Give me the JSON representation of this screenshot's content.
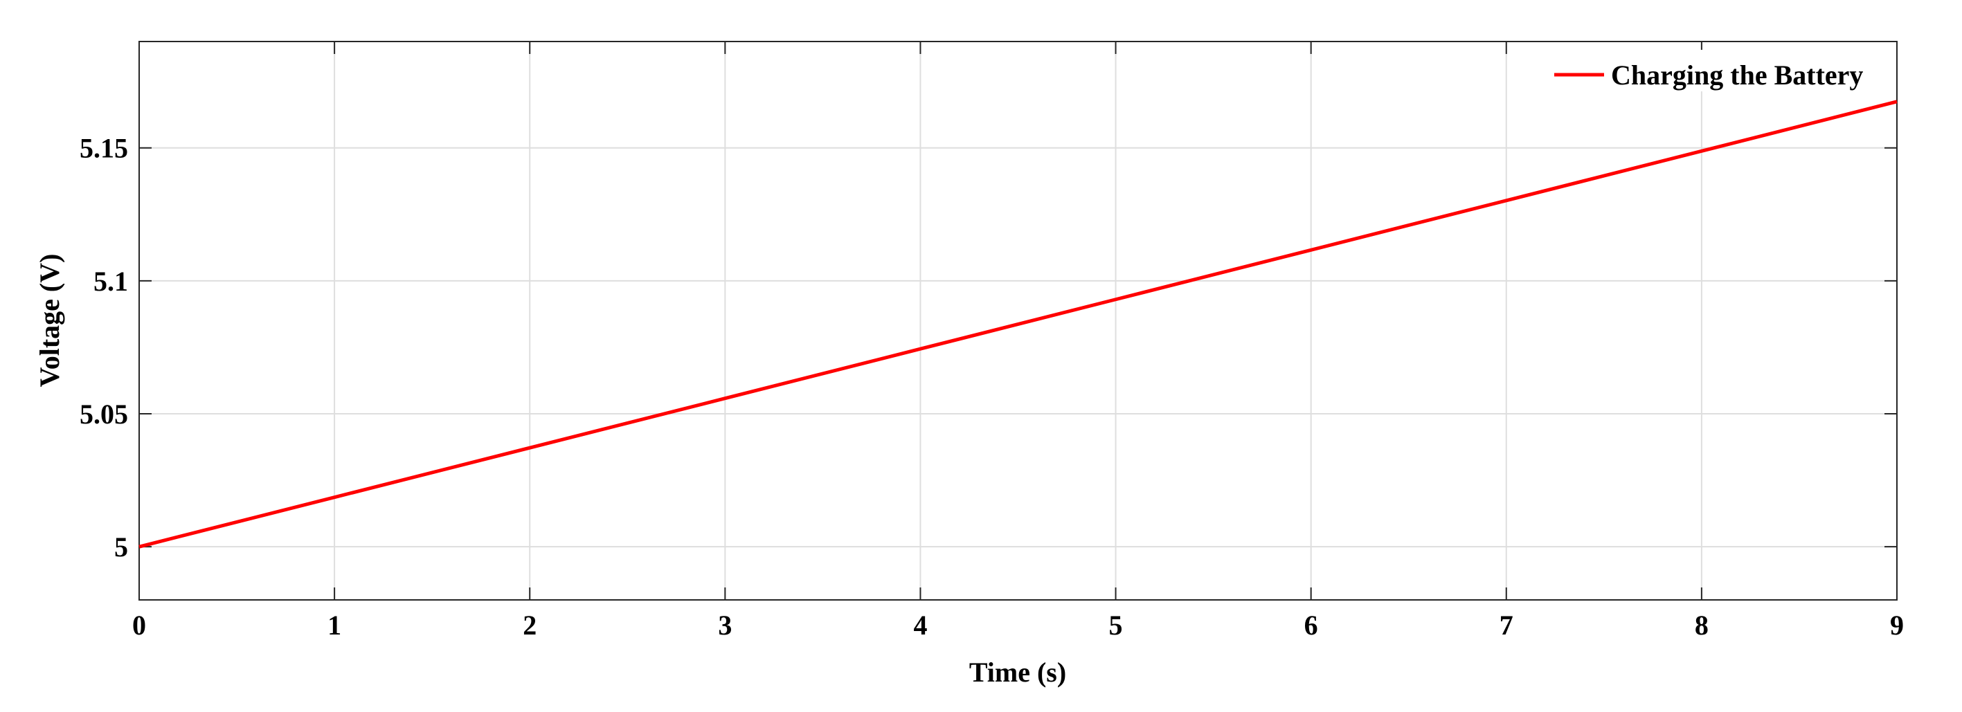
{
  "chart_data": {
    "type": "line",
    "xlabel": "Time (s)",
    "ylabel": "Voltage (V)",
    "x": [
      0,
      1,
      2,
      3,
      4,
      5,
      6,
      7,
      8,
      9
    ],
    "series": [
      {
        "name": "Charging the Battery",
        "color": "#ff0000",
        "values": [
          5.0,
          5.0186,
          5.0372,
          5.0558,
          5.0744,
          5.093,
          5.1116,
          5.1302,
          5.1488,
          5.1674
        ]
      }
    ],
    "xlim": [
      0,
      9
    ],
    "ylim": [
      4.98,
      5.19
    ],
    "xticks": [
      0,
      1,
      2,
      3,
      4,
      5,
      6,
      7,
      8,
      9
    ],
    "yticks": [
      5,
      5.05,
      5.1,
      5.15
    ],
    "grid": true,
    "legend": "upper right"
  }
}
